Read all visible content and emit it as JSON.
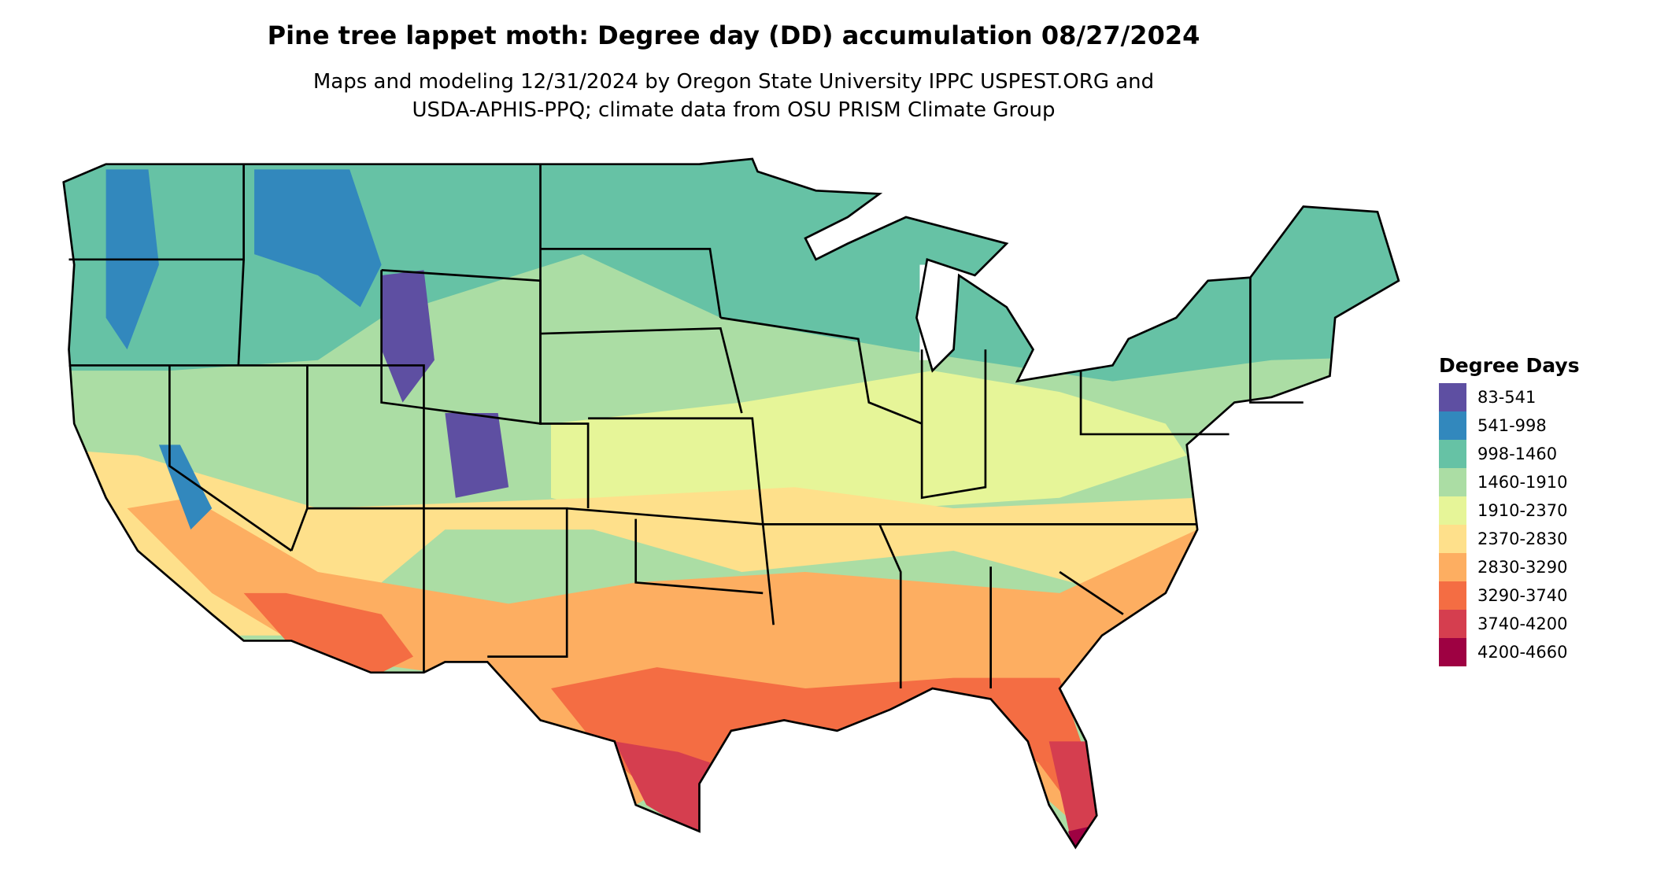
{
  "title": "Pine tree lappet moth: Degree day (DD) accumulation 08/27/2024",
  "subtitle_line1": "Maps and modeling 12/31/2024 by Oregon State University IPPC USPEST.ORG and",
  "subtitle_line2": "USDA-APHIS-PPQ; climate data from OSU PRISM Climate Group",
  "legend": {
    "title": "Degree Days",
    "bins": [
      {
        "label": "83-541",
        "color": "#5E4FA2"
      },
      {
        "label": "541-998",
        "color": "#3288BD"
      },
      {
        "label": "998-1460",
        "color": "#66C2A5"
      },
      {
        "label": "1460-1910",
        "color": "#ABDDA4"
      },
      {
        "label": "1910-2370",
        "color": "#E6F598"
      },
      {
        "label": "2370-2830",
        "color": "#FEE08B"
      },
      {
        "label": "2830-3290",
        "color": "#FDAE61"
      },
      {
        "label": "3290-3740",
        "color": "#F46D43"
      },
      {
        "label": "3740-4200",
        "color": "#D53E4F"
      },
      {
        "label": "4200-4660",
        "color": "#9E0142"
      }
    ]
  },
  "map": {
    "region": "Contiguous United States",
    "state_borders": true,
    "border_color": "#000000"
  }
}
